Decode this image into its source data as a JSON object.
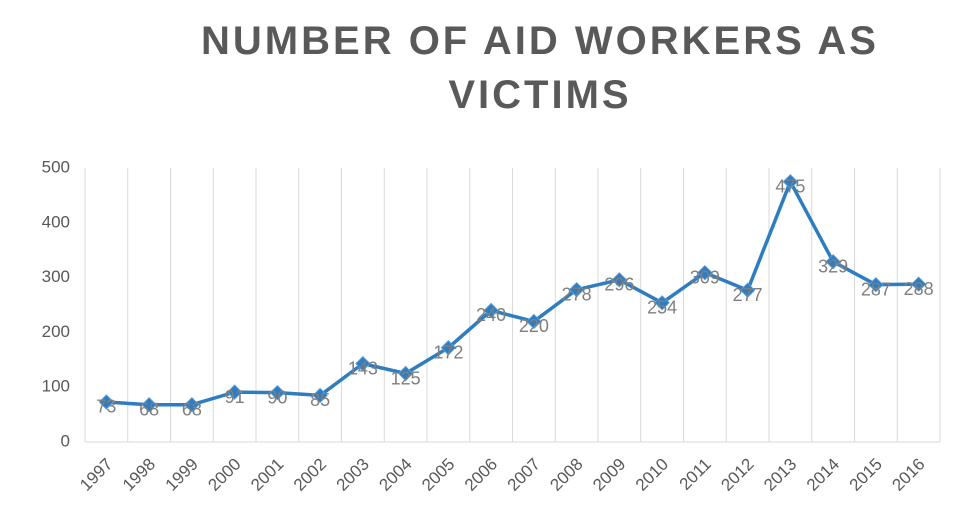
{
  "chart_data": {
    "type": "line",
    "title": "NUMBER OF AID WORKERS AS VICTIMS",
    "categories": [
      "1997",
      "1998",
      "1999",
      "2000",
      "2001",
      "2002",
      "2003",
      "2004",
      "2005",
      "2006",
      "2007",
      "2008",
      "2009",
      "2010",
      "2011",
      "2012",
      "2013",
      "2014",
      "2015",
      "2016"
    ],
    "series": [
      {
        "name": "Victims",
        "color": "#2e7dc0",
        "values": [
          73,
          68,
          68,
          91,
          90,
          85,
          143,
          125,
          172,
          240,
          220,
          278,
          296,
          254,
          309,
          277,
          475,
          329,
          287,
          288
        ]
      }
    ],
    "ylim": [
      0,
      500
    ],
    "yticks": [
      0,
      100,
      200,
      300,
      400,
      500
    ],
    "grid": "x",
    "data_labels": true
  }
}
